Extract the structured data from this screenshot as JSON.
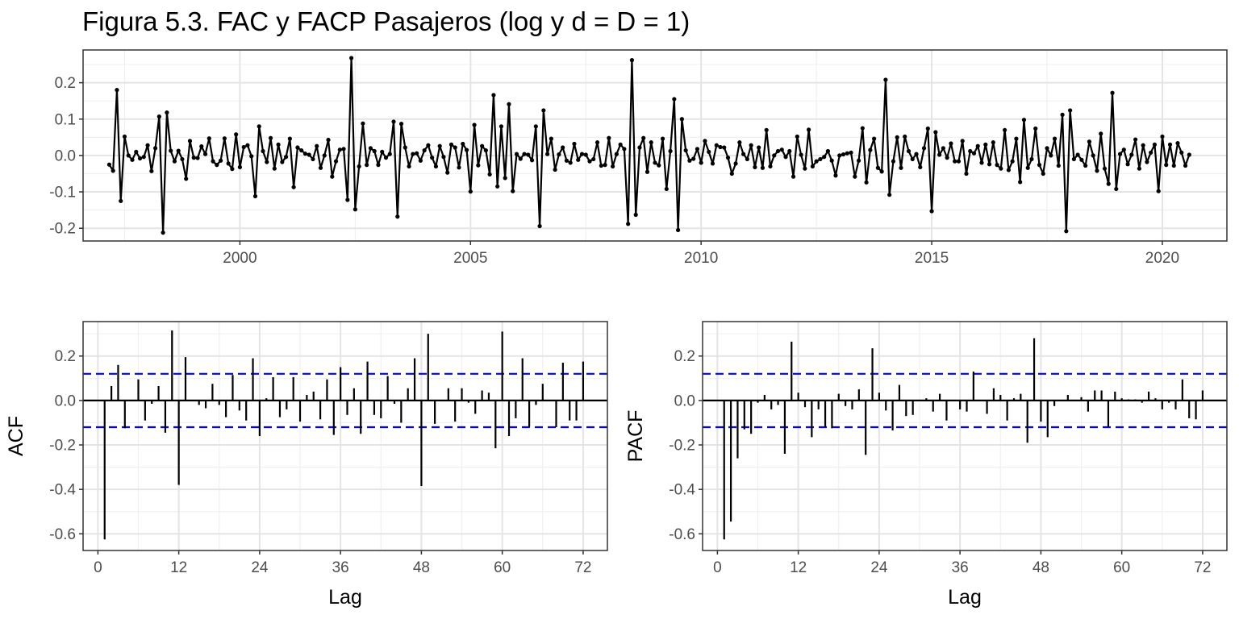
{
  "figure": {
    "title": "Figura 5.3. FAC y FACP Pasajeros (log y d = D = 1)"
  },
  "chart_data": [
    {
      "type": "line",
      "xlabel": "",
      "ylabel": "",
      "xlim": [
        1996.6,
        2021.4
      ],
      "ylim": [
        -0.235,
        0.29
      ],
      "x_ticks": [
        2000,
        2005,
        2010,
        2015,
        2020
      ],
      "x_tick_labels": [
        "2000",
        "2005",
        "2010",
        "2015",
        "2020"
      ],
      "y_ticks": [
        -0.2,
        -0.1,
        0.0,
        0.1,
        0.2
      ],
      "y_tick_labels": [
        "-0.2",
        "-0.1",
        "0.0",
        "0.1",
        "0.2"
      ],
      "grid": true,
      "start": 1997.167,
      "frequency": 12,
      "values": [
        -0.025,
        -0.042,
        0.18,
        -0.125,
        0.052,
        0.0,
        -0.012,
        0.01,
        -0.008,
        -0.004,
        0.028,
        -0.043,
        0.02,
        0.107,
        -0.212,
        0.118,
        0.013,
        -0.016,
        0.013,
        -0.01,
        -0.064,
        0.04,
        -0.006,
        -0.007,
        0.025,
        0.004,
        0.047,
        -0.016,
        -0.026,
        -0.014,
        0.047,
        -0.022,
        -0.037,
        0.058,
        -0.032,
        0.023,
        0.028,
        -0.002,
        -0.112,
        0.08,
        0.012,
        -0.018,
        0.048,
        -0.036,
        0.03,
        -0.018,
        -0.004,
        0.046,
        -0.087,
        0.022,
        0.014,
        0.005,
        0.002,
        -0.01,
        0.026,
        -0.034,
        0.0,
        0.043,
        -0.058,
        -0.016,
        0.016,
        0.018,
        -0.122,
        0.268,
        -0.148,
        -0.03,
        0.088,
        -0.026,
        0.02,
        0.012,
        -0.026,
        0.01,
        -0.006,
        0.004,
        0.093,
        -0.168,
        0.087,
        0.022,
        -0.03,
        0.004,
        0.006,
        -0.014,
        0.014,
        0.028,
        -0.006,
        -0.03,
        0.026,
        -0.004,
        -0.047,
        0.03,
        0.022,
        -0.033,
        0.032,
        0.015,
        -0.099,
        0.084,
        -0.027,
        0.026,
        0.014,
        -0.052,
        0.166,
        -0.085,
        0.08,
        -0.062,
        0.141,
        -0.098,
        0.004,
        -0.009,
        0.004,
        0.002,
        -0.013,
        0.08,
        -0.194,
        0.124,
        0.004,
        0.046,
        -0.039,
        0.003,
        0.022,
        -0.014,
        -0.02,
        0.032,
        -0.012,
        0.004,
        0.002,
        -0.016,
        -0.01,
        0.036,
        -0.028,
        -0.026,
        0.048,
        -0.03,
        0.004,
        0.03,
        0.018,
        -0.188,
        0.262,
        -0.163,
        0.022,
        0.048,
        -0.045,
        0.036,
        -0.02,
        -0.027,
        0.046,
        -0.092,
        0.012,
        0.155,
        -0.205,
        0.1,
        0.014,
        -0.014,
        -0.009,
        0.018,
        -0.02,
        0.04,
        0.01,
        -0.022,
        0.028,
        0.023,
        0.022,
        -0.006,
        -0.05,
        -0.022,
        0.036,
        0.004,
        -0.01,
        0.028,
        -0.032,
        0.022,
        -0.034,
        0.07,
        -0.03,
        0.0,
        0.012,
        0.016,
        -0.004,
        0.012,
        -0.058,
        0.052,
        0.002,
        -0.036,
        0.071,
        -0.03,
        -0.016,
        -0.01,
        -0.004,
        0.012,
        -0.014,
        -0.055,
        0.0,
        0.003,
        0.006,
        0.008,
        -0.058,
        -0.014,
        0.075,
        -0.074,
        0.015,
        0.046,
        -0.034,
        -0.044,
        0.208,
        -0.108,
        -0.016,
        0.05,
        -0.034,
        0.052,
        0.012,
        -0.01,
        0.004,
        -0.032,
        0.02,
        0.074,
        -0.153,
        0.064,
        0.002,
        0.02,
        -0.006,
        0.033,
        -0.016,
        -0.016,
        0.04,
        -0.05,
        0.012,
        0.006,
        0.026,
        -0.02,
        0.03,
        -0.024,
        0.036,
        -0.026,
        -0.036,
        0.07,
        -0.04,
        -0.016,
        0.046,
        -0.073,
        0.098,
        -0.034,
        -0.01,
        0.074,
        -0.026,
        -0.05,
        0.02,
        0.0,
        0.046,
        -0.028,
        0.112,
        -0.208,
        0.124,
        -0.01,
        0.002,
        -0.012,
        -0.028,
        0.038,
        0.0,
        -0.042,
        0.06,
        -0.036,
        -0.078,
        0.172,
        -0.092,
        0.004,
        0.016,
        -0.024,
        0.002,
        0.044,
        -0.036,
        0.028,
        -0.018,
        0.008,
        0.03,
        -0.098,
        0.052,
        -0.026,
        0.03,
        -0.028,
        0.034,
        0.008,
        -0.028,
        0.002
      ]
    },
    {
      "type": "bar",
      "xlabel": "Lag",
      "ylabel": "ACF",
      "xlim": [
        -2.2,
        75.6
      ],
      "ylim": [
        -0.675,
        0.355
      ],
      "x_ticks": [
        0,
        12,
        24,
        36,
        48,
        60,
        72
      ],
      "x_tick_labels": [
        "0",
        "12",
        "24",
        "36",
        "48",
        "60",
        "72"
      ],
      "y_ticks": [
        -0.6,
        -0.4,
        -0.2,
        0.0,
        0.2
      ],
      "y_tick_labels": [
        "-0.6",
        "-0.4",
        "-0.2",
        "0.0",
        "0.2"
      ],
      "confidence_band": 0.12,
      "grid": true,
      "lags": [
        1,
        2,
        3,
        4,
        5,
        6,
        7,
        8,
        9,
        10,
        11,
        12,
        13,
        14,
        15,
        16,
        17,
        18,
        19,
        20,
        21,
        22,
        23,
        24,
        25,
        26,
        27,
        28,
        29,
        30,
        31,
        32,
        33,
        34,
        35,
        36,
        37,
        38,
        39,
        40,
        41,
        42,
        43,
        44,
        45,
        46,
        47,
        48,
        49,
        50,
        51,
        52,
        53,
        54,
        55,
        56,
        57,
        58,
        59,
        60,
        61,
        62,
        63,
        64,
        65,
        66,
        67,
        68,
        69,
        70,
        71,
        72
      ],
      "values": [
        -0.625,
        0.065,
        0.16,
        -0.125,
        0.0,
        0.095,
        -0.09,
        -0.015,
        0.065,
        -0.145,
        0.315,
        -0.38,
        0.195,
        0.0,
        -0.02,
        -0.035,
        0.075,
        -0.02,
        -0.075,
        0.115,
        -0.045,
        -0.09,
        0.19,
        -0.16,
        0.01,
        0.105,
        -0.075,
        -0.04,
        0.105,
        -0.095,
        0.025,
        0.04,
        -0.085,
        0.095,
        -0.155,
        0.15,
        -0.065,
        0.055,
        -0.15,
        0.175,
        -0.065,
        -0.08,
        0.11,
        -0.015,
        -0.1,
        0.055,
        0.19,
        -0.385,
        0.3,
        -0.105,
        0.0,
        0.055,
        -0.095,
        0.055,
        -0.01,
        -0.06,
        0.045,
        0.035,
        -0.215,
        0.31,
        -0.16,
        -0.08,
        0.19,
        -0.12,
        -0.02,
        0.075,
        0.0,
        -0.12,
        0.17,
        -0.09,
        -0.09,
        0.175
      ]
    },
    {
      "type": "bar",
      "xlabel": "Lag",
      "ylabel": "PACF",
      "xlim": [
        -2.2,
        75.6
      ],
      "ylim": [
        -0.675,
        0.355
      ],
      "x_ticks": [
        0,
        12,
        24,
        36,
        48,
        60,
        72
      ],
      "x_tick_labels": [
        "0",
        "12",
        "24",
        "36",
        "48",
        "60",
        "72"
      ],
      "y_ticks": [
        -0.6,
        -0.4,
        -0.2,
        0.0,
        0.2
      ],
      "y_tick_labels": [
        "-0.6",
        "-0.4",
        "-0.2",
        "0.0",
        "0.2"
      ],
      "confidence_band": 0.12,
      "grid": true,
      "lags": [
        1,
        2,
        3,
        4,
        5,
        6,
        7,
        8,
        9,
        10,
        11,
        12,
        13,
        14,
        15,
        16,
        17,
        18,
        19,
        20,
        21,
        22,
        23,
        24,
        25,
        26,
        27,
        28,
        29,
        30,
        31,
        32,
        33,
        34,
        35,
        36,
        37,
        38,
        39,
        40,
        41,
        42,
        43,
        44,
        45,
        46,
        47,
        48,
        49,
        50,
        51,
        52,
        53,
        54,
        55,
        56,
        57,
        58,
        59,
        60,
        61,
        62,
        63,
        64,
        65,
        66,
        67,
        68,
        69,
        70,
        71,
        72
      ],
      "values": [
        -0.625,
        -0.545,
        -0.26,
        -0.13,
        -0.15,
        -0.01,
        0.025,
        -0.04,
        -0.02,
        -0.24,
        0.265,
        0.035,
        -0.03,
        -0.165,
        -0.04,
        -0.12,
        -0.125,
        0.03,
        -0.025,
        -0.04,
        0.05,
        -0.245,
        0.235,
        0.035,
        -0.045,
        -0.135,
        0.07,
        -0.07,
        -0.065,
        0.0,
        0.01,
        -0.05,
        0.03,
        -0.09,
        0.0,
        -0.04,
        -0.05,
        0.13,
        0.0,
        -0.06,
        0.055,
        0.025,
        -0.09,
        0.01,
        0.03,
        -0.19,
        0.28,
        -0.095,
        -0.165,
        -0.025,
        0.0,
        0.025,
        0.0,
        0.015,
        -0.05,
        0.045,
        0.045,
        -0.12,
        0.04,
        0.01,
        0.005,
        0.005,
        -0.01,
        0.04,
        0.01,
        -0.04,
        -0.01,
        -0.04,
        0.095,
        -0.08,
        -0.085,
        0.045
      ]
    }
  ]
}
